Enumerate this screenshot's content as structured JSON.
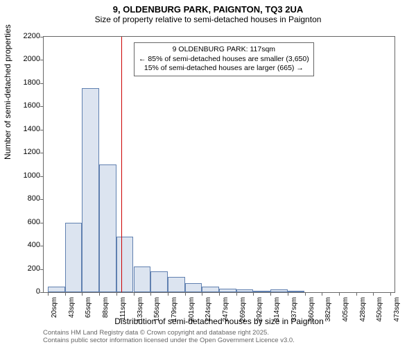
{
  "title": {
    "main": "9, OLDENBURG PARK, PAIGNTON, TQ3 2UA",
    "sub": "Size of property relative to semi-detached houses in Paignton"
  },
  "chart": {
    "type": "histogram",
    "ylabel": "Number of semi-detached properties",
    "xlabel": "Distribution of semi-detached houses by size in Paignton",
    "ylim": [
      0,
      2200
    ],
    "yticks": [
      0,
      200,
      400,
      600,
      800,
      1000,
      1200,
      1400,
      1600,
      1800,
      2000,
      2200
    ],
    "xticks": [
      "20sqm",
      "43sqm",
      "65sqm",
      "88sqm",
      "111sqm",
      "133sqm",
      "156sqm",
      "179sqm",
      "201sqm",
      "224sqm",
      "247sqm",
      "269sqm",
      "292sqm",
      "314sqm",
      "337sqm",
      "360sqm",
      "382sqm",
      "405sqm",
      "428sqm",
      "450sqm",
      "473sqm"
    ],
    "bars": [
      {
        "x_index": 0,
        "value": 50
      },
      {
        "x_index": 1,
        "value": 600
      },
      {
        "x_index": 2,
        "value": 1760
      },
      {
        "x_index": 3,
        "value": 1100
      },
      {
        "x_index": 4,
        "value": 480
      },
      {
        "x_index": 5,
        "value": 220
      },
      {
        "x_index": 6,
        "value": 180
      },
      {
        "x_index": 7,
        "value": 130
      },
      {
        "x_index": 8,
        "value": 75
      },
      {
        "x_index": 9,
        "value": 50
      },
      {
        "x_index": 10,
        "value": 30
      },
      {
        "x_index": 11,
        "value": 25
      },
      {
        "x_index": 12,
        "value": 15
      },
      {
        "x_index": 13,
        "value": 25
      },
      {
        "x_index": 14,
        "value": 5
      }
    ],
    "bar_fill": "#dce4f0",
    "bar_stroke": "#6080b0",
    "plot_border": "#666666",
    "marker": {
      "x_value_sqm": 117,
      "color": "#cc0000"
    },
    "annotation": {
      "line1": "9 OLDENBURG PARK: 117sqm",
      "line2": "← 85% of semi-detached houses are smaller (3,650)",
      "line3": "15% of semi-detached houses are larger (665) →"
    }
  },
  "footer": {
    "line1": "Contains HM Land Registry data © Crown copyright and database right 2025.",
    "line2": "Contains public sector information licensed under the Open Government Licence v3.0."
  }
}
